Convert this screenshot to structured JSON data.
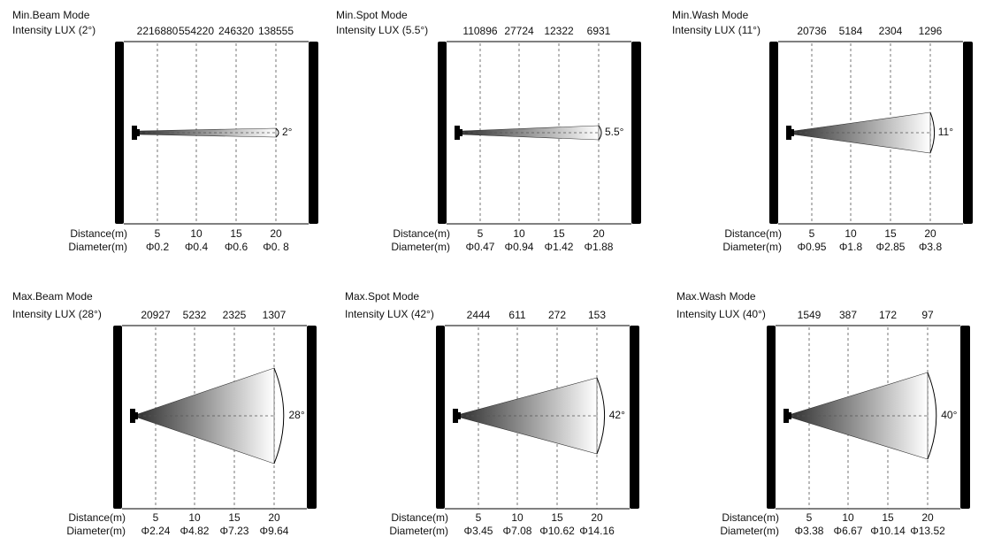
{
  "panels": [
    {
      "title": "Min.Beam Mode",
      "intensity_label": "Intensity LUX (2°)",
      "lux": [
        2216880,
        554220,
        246320,
        138555
      ],
      "angle": "2°",
      "distance_label": "Distance(m)",
      "distances": [
        5,
        10,
        15,
        20
      ],
      "diameter_label": "Diameter(m)",
      "diameters": [
        "Φ0.2",
        "Φ0.4",
        "Φ0.6",
        "Φ0. 8"
      ]
    },
    {
      "title": "Min.Spot Mode",
      "intensity_label": "Intensity LUX (5.5°)",
      "lux": [
        110896,
        27724,
        12322,
        6931
      ],
      "angle": "5.5°",
      "distance_label": "Distance(m)",
      "distances": [
        5,
        10,
        15,
        20
      ],
      "diameter_label": "Diameter(m)",
      "diameters": [
        "Φ0.47",
        "Φ0.94",
        "Φ1.42",
        "Φ1.88"
      ]
    },
    {
      "title": "Min.Wash Mode",
      "intensity_label": "Intensity LUX (11°)",
      "lux": [
        20736,
        5184,
        2304,
        1296
      ],
      "angle": "11°",
      "distance_label": "Distance(m)",
      "distances": [
        5,
        10,
        15,
        20
      ],
      "diameter_label": "Diameter(m)",
      "diameters": [
        "Φ0.95",
        "Φ1.8",
        "Φ2.85",
        "Φ3.8"
      ]
    },
    {
      "title": "Max.Beam Mode",
      "intensity_label": "Intensity LUX (28°)",
      "lux": [
        20927,
        5232,
        2325,
        1307
      ],
      "angle": "28°",
      "distance_label": "Distance(m)",
      "distances": [
        5,
        10,
        15,
        20
      ],
      "diameter_label": "Diameter(m)",
      "diameters": [
        "Φ2.24",
        "Φ4.82",
        "Φ7.23",
        "Φ9.64"
      ]
    },
    {
      "title": "Max.Spot Mode",
      "intensity_label": "Intensity LUX (42°)",
      "lux": [
        2444,
        611,
        272,
        153
      ],
      "angle": "42°",
      "distance_label": "Distance(m)",
      "distances": [
        5,
        10,
        15,
        20
      ],
      "diameter_label": "Diameter(m)",
      "diameters": [
        "Φ3.45",
        "Φ7.08",
        "Φ10.62",
        "Φ14.16"
      ]
    },
    {
      "title": "Max.Wash Mode",
      "intensity_label": "Intensity LUX (40°)",
      "lux": [
        1549,
        387,
        172,
        97
      ],
      "angle": "40°",
      "distance_label": "Distance(m)",
      "distances": [
        5,
        10,
        15,
        20
      ],
      "diameter_label": "Diameter(m)",
      "diameters": [
        "Φ3.38",
        "Φ6.67",
        "Φ10.14",
        "Φ13.52"
      ]
    }
  ]
}
